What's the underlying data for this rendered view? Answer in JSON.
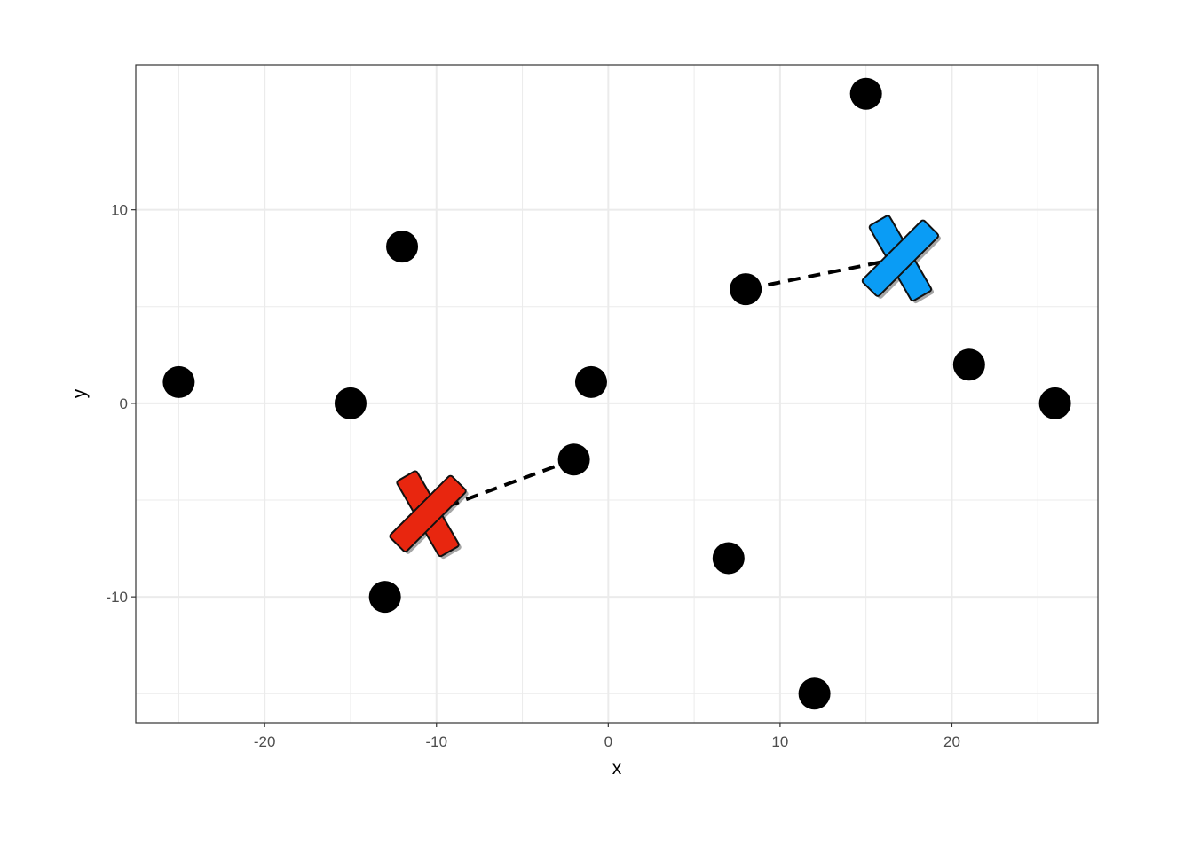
{
  "chart_data": {
    "type": "scatter",
    "xlabel": "x",
    "ylabel": "y",
    "xlim": [
      -27.5,
      28.5
    ],
    "ylim": [
      -16.5,
      17.5
    ],
    "x_ticks": [
      -20,
      -10,
      0,
      10,
      20
    ],
    "y_ticks": [
      -10,
      0,
      10
    ],
    "x_tick_labels": [
      "-20",
      "-10",
      "0",
      "10",
      "20"
    ],
    "y_tick_labels": [
      "-10",
      "0",
      "10"
    ],
    "grid": true,
    "points": [
      {
        "x": -25,
        "y": 1.1
      },
      {
        "x": -15,
        "y": 0
      },
      {
        "x": -12,
        "y": 8.1
      },
      {
        "x": -13,
        "y": -10
      },
      {
        "x": -2,
        "y": -2.9
      },
      {
        "x": -1,
        "y": 1.1
      },
      {
        "x": 7,
        "y": -8
      },
      {
        "x": 8,
        "y": 5.9
      },
      {
        "x": 12,
        "y": -15
      },
      {
        "x": 15,
        "y": 16
      },
      {
        "x": 21,
        "y": 2
      },
      {
        "x": 26,
        "y": 0
      }
    ],
    "centroids": [
      {
        "x": -10.5,
        "y": -5.7,
        "color": "#e8260f"
      },
      {
        "x": 17,
        "y": 7.5,
        "color": "#0a9cf5"
      }
    ],
    "links": [
      {
        "from": {
          "x": -10.5,
          "y": -5.7
        },
        "to": {
          "x": -2,
          "y": -2.9
        }
      },
      {
        "from": {
          "x": 17,
          "y": 7.5
        },
        "to": {
          "x": 8,
          "y": 5.9
        }
      }
    ]
  }
}
